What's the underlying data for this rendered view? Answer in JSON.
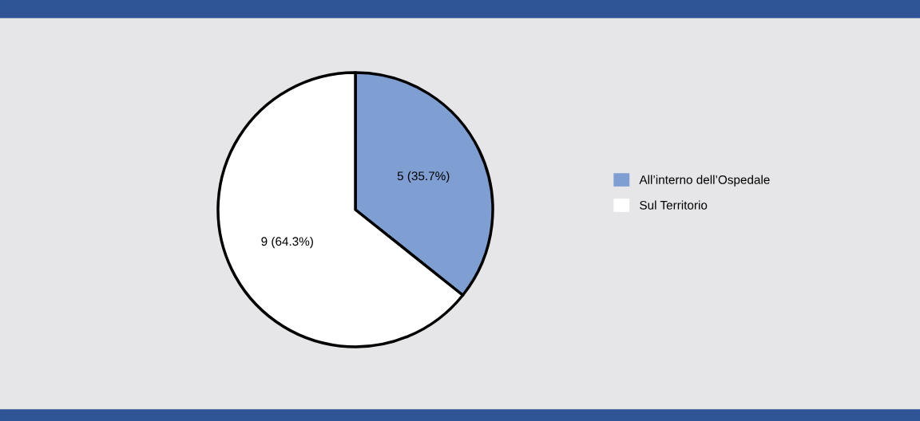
{
  "chart_data": {
    "type": "pie",
    "categories": [
      "All’interno dell’Ospedale",
      "Sul Territorio"
    ],
    "values": [
      5,
      9
    ],
    "colors": [
      "#7f9fd3",
      "#ffffff"
    ],
    "value_labels": [
      "5 (35.7%)",
      "9 (64.3%)"
    ],
    "legend": "right"
  }
}
